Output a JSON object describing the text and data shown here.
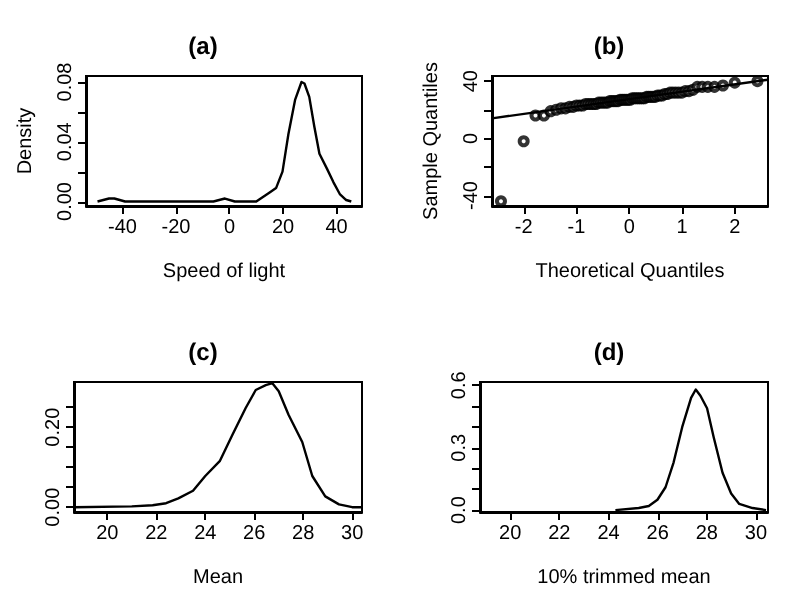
{
  "chart_data": [
    {
      "type": "line",
      "title": "(a)",
      "xlabel": "Speed of light",
      "ylabel": "Density",
      "color": "#000000",
      "marker": "none",
      "line_style": "solid",
      "grid": false,
      "x": [
        -49.3,
        -45,
        -43,
        -41,
        -39,
        -6,
        -1.7,
        2,
        10,
        15,
        17.4,
        19.8,
        22,
        24.5,
        26.9,
        28,
        29.8,
        31.7,
        33.6,
        36.4,
        38.8,
        41.2,
        43.6,
        45.5
      ],
      "values": [
        0,
        0.002,
        0.002,
        0.001,
        0,
        0,
        0.002,
        0,
        0,
        0.006,
        0.009,
        0.02,
        0.045,
        0.068,
        0.08,
        0.079,
        0.07,
        0.05,
        0.032,
        0.022,
        0.013,
        0.005,
        0.001,
        0
      ],
      "xlim": [
        -53.6,
        49.5
      ],
      "xticks": [
        -40,
        -20,
        0,
        20,
        40
      ],
      "ylim": [
        -0.003,
        0.084
      ],
      "yticks": [
        {
          "value": 0,
          "label": "0.00"
        },
        {
          "value": 0.02,
          "label": null
        },
        0.04,
        {
          "value": 0.06,
          "label": null
        },
        0.08
      ]
    },
    {
      "type": "scatter",
      "title": "(b)",
      "xlabel": "Theoretical Quantiles",
      "ylabel": "Sample Quantiles",
      "marker": "circle",
      "grid": false,
      "series": [
        {
          "color": "#000000",
          "x": [
            -2.43,
            -2.0,
            -1.776,
            -1.616,
            -1.489,
            -1.383,
            -1.29,
            -1.208,
            -1.132,
            -1.063,
            -0.998,
            -0.937,
            -0.88,
            -0.825,
            -0.773,
            -0.723,
            -0.674,
            -0.627,
            -0.582,
            -0.537,
            -0.494,
            -0.451,
            -0.41,
            -0.369,
            -0.329,
            -0.289,
            -0.25,
            -0.21,
            -0.172,
            -0.133,
            -0.095,
            -0.057,
            -0.019,
            0.019,
            0.057,
            0.095,
            0.133,
            0.172,
            0.21,
            0.25,
            0.289,
            0.329,
            0.369,
            0.41,
            0.451,
            0.494,
            0.537,
            0.582,
            0.627,
            0.674,
            0.723,
            0.773,
            0.825,
            0.88,
            0.937,
            0.998,
            1.063,
            1.132,
            1.208,
            1.29,
            1.383,
            1.489,
            1.616,
            1.776,
            2.0,
            2.43
          ],
          "values": [
            -44,
            -2,
            16,
            16,
            19,
            20,
            21,
            21,
            22,
            22,
            23,
            23,
            23,
            24,
            24,
            24,
            24,
            24,
            25,
            25,
            25,
            25,
            25,
            26,
            26,
            26,
            26,
            26,
            27,
            27,
            27,
            27,
            27,
            27,
            28,
            28,
            28,
            28,
            28,
            28,
            28,
            29,
            29,
            29,
            29,
            29,
            30,
            30,
            30,
            31,
            31,
            32,
            32,
            32,
            32,
            32,
            33,
            33,
            34,
            36,
            36,
            36,
            36,
            37,
            39,
            40
          ]
        },
        {
          "type": "line",
          "color": "#000000",
          "marker": "none",
          "line_style": "solid",
          "x": [
            -2.6,
            2.63
          ],
          "values": [
            14,
            41
          ]
        }
      ],
      "xlim": [
        -2.6,
        2.63
      ],
      "xticks": [
        -2,
        -1,
        0,
        1,
        2
      ],
      "ylim": [
        -47.3,
        43.6
      ],
      "yticks": [
        -40,
        {
          "value": -20,
          "label": null
        },
        0,
        {
          "value": 20,
          "label": null
        },
        40
      ]
    },
    {
      "type": "line",
      "title": "(c)",
      "xlabel": "Mean",
      "color": "#000000",
      "marker": "none",
      "line_style": "solid",
      "grid": false,
      "x": [
        18.64,
        21.0,
        21.85,
        22.4,
        22.9,
        23.5,
        24.0,
        24.6,
        25.1,
        25.65,
        26.06,
        26.47,
        26.74,
        27.0,
        27.4,
        27.96,
        28.37,
        28.9,
        29.46,
        30.0,
        30.4
      ],
      "values": [
        0,
        0.002,
        0.005,
        0.01,
        0.022,
        0.041,
        0.078,
        0.116,
        0.18,
        0.248,
        0.293,
        0.305,
        0.31,
        0.29,
        0.231,
        0.163,
        0.078,
        0.027,
        0.007,
        0,
        0
      ],
      "xlim": [
        18.64,
        30.4
      ],
      "xticks": [
        20,
        22,
        24,
        26,
        28,
        30
      ],
      "ylim": [
        -0.012,
        0.313
      ],
      "yticks": [
        {
          "value": 0,
          "label": "0.00"
        },
        {
          "value": 0.05,
          "label": null
        },
        {
          "value": 0.1,
          "label": null
        },
        {
          "value": 0.15,
          "label": null
        },
        {
          "value": 0.2,
          "label": "0.20"
        },
        {
          "value": 0.25,
          "label": null
        }
      ]
    },
    {
      "type": "line",
      "title": "(d)",
      "xlabel": "10% trimmed mean",
      "color": "#000000",
      "marker": "none",
      "line_style": "solid",
      "grid": false,
      "x": [
        24.28,
        25.23,
        25.64,
        25.99,
        26.32,
        26.65,
        27.0,
        27.36,
        27.55,
        27.74,
        28.01,
        28.28,
        28.64,
        28.99,
        29.32,
        29.86,
        30.41
      ],
      "values": [
        0,
        0.01,
        0.02,
        0.05,
        0.11,
        0.23,
        0.4,
        0.54,
        0.58,
        0.55,
        0.49,
        0.35,
        0.18,
        0.08,
        0.03,
        0.01,
        0
      ],
      "xlim": [
        18.77,
        30.49
      ],
      "xticks": [
        20,
        22,
        24,
        26,
        28,
        30
      ],
      "ylim": [
        -0.009,
        0.616
      ],
      "yticks": [
        {
          "value": 0,
          "label": "0.0"
        },
        {
          "value": 0.1,
          "label": null
        },
        {
          "value": 0.2,
          "label": null
        },
        0.3,
        {
          "value": 0.4,
          "label": null
        },
        {
          "value": 0.5,
          "label": null
        },
        0.6
      ]
    }
  ]
}
